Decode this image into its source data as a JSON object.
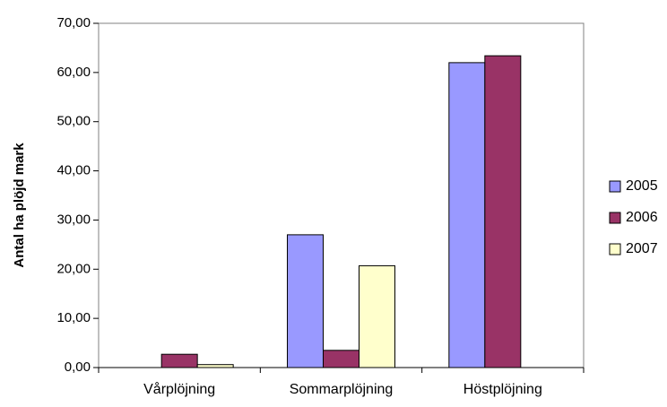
{
  "chart_data": {
    "type": "bar",
    "title": "",
    "xlabel": "",
    "ylabel": "Antal ha plöjd mark",
    "ylim": [
      0,
      70
    ],
    "yticks": [
      "0,00",
      "10,00",
      "20,00",
      "30,00",
      "40,00",
      "50,00",
      "60,00",
      "70,00"
    ],
    "ytick_values": [
      0,
      10,
      20,
      30,
      40,
      50,
      60,
      70
    ],
    "categories": [
      "Vårplöjning",
      "Sommarplöjning",
      "Höstplöjning"
    ],
    "series": [
      {
        "name": "2005",
        "color": "#9999ff",
        "values": [
          0,
          27,
          62
        ]
      },
      {
        "name": "2006",
        "color": "#993366",
        "values": [
          2.7,
          3.5,
          63.4
        ]
      },
      {
        "name": "2007",
        "color": "#ffffcc",
        "values": [
          0.6,
          20.7,
          0
        ]
      }
    ],
    "grid": false,
    "legend_position": "right"
  }
}
